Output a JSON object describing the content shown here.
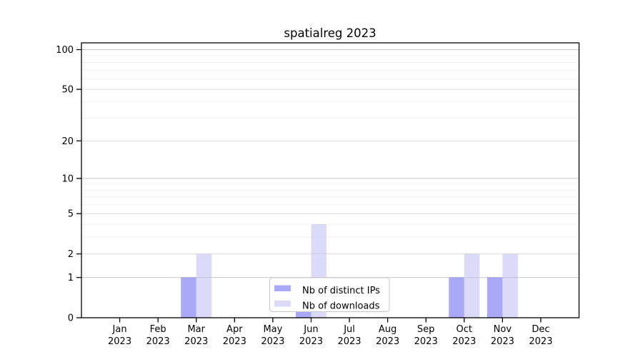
{
  "chart_data": {
    "type": "bar",
    "title": "spatialreg 2023",
    "categories": [
      "Jan 2023",
      "Feb 2023",
      "Mar 2023",
      "Apr 2023",
      "May 2023",
      "Jun 2023",
      "Jul 2023",
      "Aug 2023",
      "Sep 2023",
      "Oct 2023",
      "Nov 2023",
      "Dec 2023"
    ],
    "series": [
      {
        "name": "Nb of distinct IPs",
        "color": "#a9a9f8",
        "values": [
          0,
          0,
          1,
          0,
          0,
          1,
          0,
          0,
          0,
          1,
          1,
          0
        ]
      },
      {
        "name": "Nb of downloads",
        "color": "#dbdbf9",
        "values": [
          0,
          0,
          2,
          0,
          0,
          4,
          0,
          0,
          0,
          2,
          2,
          0
        ]
      }
    ],
    "yscale": "log1p",
    "ylim": [
      0,
      113
    ],
    "y_tick_values": [
      0,
      1,
      2,
      5,
      10,
      20,
      50,
      100
    ],
    "grid": {
      "on": true,
      "major_values": [
        1,
        10,
        100
      ],
      "mid_values": [
        2,
        5,
        20,
        50
      ],
      "minor_values": [
        3,
        4,
        6,
        7,
        8,
        9,
        30,
        40,
        60,
        70,
        80,
        90
      ],
      "major_color": "#c6c6c6",
      "mid_color": "#dcdcdc",
      "minor_color": "#efefef"
    },
    "legend_position": "lower center",
    "spine_color": "#000000",
    "background_color": "#ffffff"
  }
}
